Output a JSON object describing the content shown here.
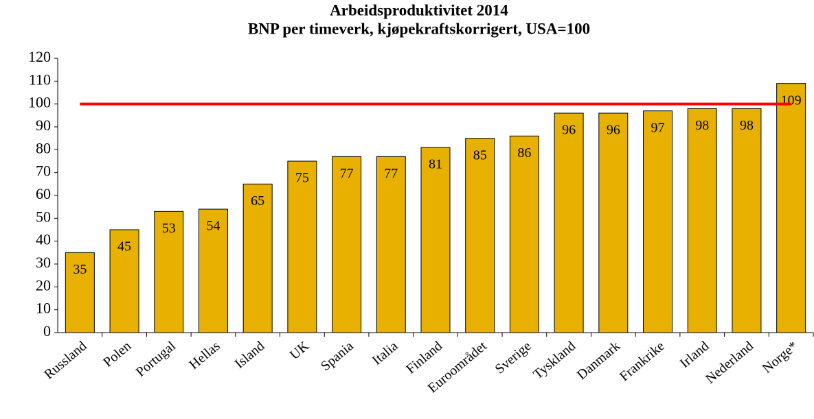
{
  "chart_data": {
    "type": "bar",
    "title": "Arbeidsproduktivitet 2014",
    "subtitle": "BNP per timeverk, kjøpekraftskorrigert, USA=100",
    "categories": [
      "Russland",
      "Polen",
      "Portugal",
      "Hellas",
      "Island",
      "UK",
      "Spania",
      "Italia",
      "Finland",
      "Euroområdet",
      "Sverige",
      "Tyskland",
      "Danmark",
      "Frankrike",
      "Irland",
      "Nederland",
      "Norge*"
    ],
    "values": [
      35,
      45,
      53,
      54,
      65,
      75,
      77,
      77,
      81,
      85,
      86,
      96,
      96,
      97,
      98,
      98,
      109
    ],
    "color": "#e8b000",
    "ylim": [
      0,
      120
    ],
    "yticks": [
      0,
      10,
      20,
      30,
      40,
      50,
      60,
      70,
      80,
      90,
      100,
      110,
      120
    ],
    "reference_line": {
      "value": 100,
      "color": "#ff0000"
    }
  }
}
